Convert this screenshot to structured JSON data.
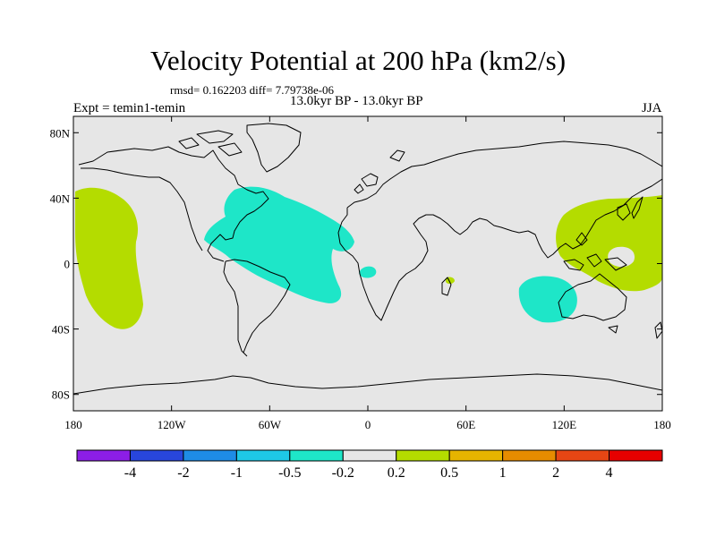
{
  "title": "Velocity Potential at 200 hPa (km2/s)",
  "stats": "rmsd= 0.162203 diff= 7.79738e-06",
  "left_label": "Expt = temin1-temin",
  "center_label": "13.0kyr BP - 13.0kyr BP",
  "right_label": "JJA",
  "colors": {
    "land_ocean_background": "#e6e6e6",
    "coastline": "#000000",
    "negative_anomaly": "#1ee6c8",
    "positive_anomaly": "#b4dc00"
  },
  "map": {
    "projection": "cylindrical-equidistant",
    "lon_range": [
      -180,
      180
    ],
    "lat_range": [
      -90,
      90
    ],
    "lon_ticks": [
      {
        "value": -180,
        "label": "180"
      },
      {
        "value": -120,
        "label": "120W"
      },
      {
        "value": -60,
        "label": "60W"
      },
      {
        "value": 0,
        "label": "0"
      },
      {
        "value": 60,
        "label": "60E"
      },
      {
        "value": 120,
        "label": "120E"
      },
      {
        "value": 180,
        "label": "180"
      }
    ],
    "lat_ticks": [
      {
        "value": 80,
        "label": "80N"
      },
      {
        "value": 40,
        "label": "40N"
      },
      {
        "value": 0,
        "label": "0"
      },
      {
        "value": -40,
        "label": "40S"
      },
      {
        "value": -80,
        "label": "80S"
      }
    ]
  },
  "colorbar": {
    "levels": [
      "-4",
      "-2",
      "-1",
      "-0.5",
      "-0.2",
      "0.2",
      "0.5",
      "1",
      "2",
      "4"
    ],
    "colors": [
      "#8c1ee6",
      "#2846dc",
      "#1e8ce6",
      "#1ec8e6",
      "#1ee6c8",
      "#e6e6e6",
      "#b4dc00",
      "#e6b400",
      "#e68c00",
      "#e64614",
      "#e60000"
    ]
  }
}
